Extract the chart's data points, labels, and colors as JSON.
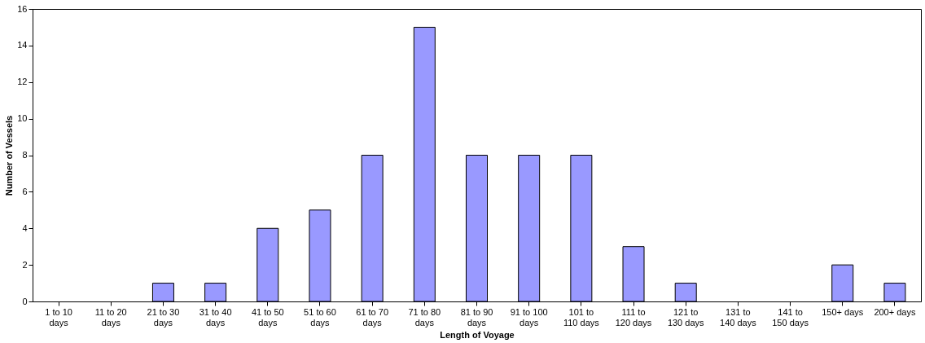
{
  "chart_data": {
    "type": "bar",
    "xlabel": "Length of Voyage",
    "ylabel": "Number of Vessels",
    "categories": [
      "1 to 10 days",
      "11 to 20 days",
      "21 to 30 days",
      "31 to 40 days",
      "41 to 50 days",
      "51 to 60 days",
      "61 to 70 days",
      "71 to 80 days",
      "81 to 90 days",
      "91 to 100 days",
      "101 to 110 days",
      "111 to 120 days",
      "121 to 130 days",
      "131 to 140 days",
      "141 to 150 days",
      "150+ days",
      "200+ days"
    ],
    "values": [
      0,
      0,
      1,
      1,
      4,
      5,
      8,
      15,
      8,
      8,
      8,
      3,
      1,
      0,
      0,
      2,
      1
    ],
    "color": "#9999ff",
    "ylim": [
      0,
      16
    ],
    "yticks": [
      0,
      2,
      4,
      6,
      8,
      10,
      12,
      14,
      16
    ],
    "grid": false
  }
}
